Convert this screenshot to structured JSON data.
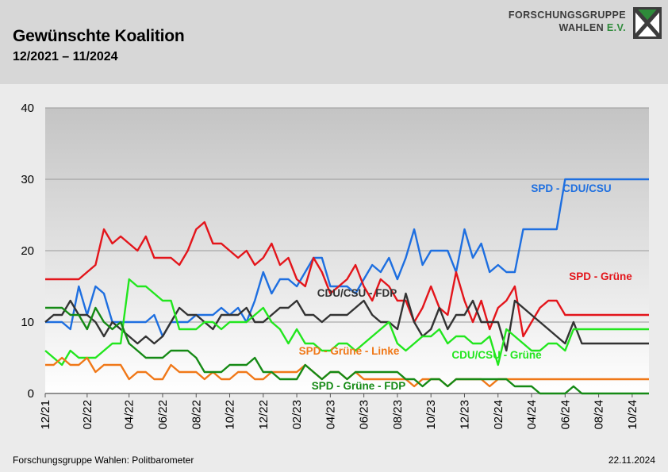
{
  "header": {
    "title": "Gewünschte Koalition",
    "subtitle": "12/2021 – 11/2024",
    "logo_line1": "FORSCHUNGSGRUPPE",
    "logo_line2": "WAHLEN",
    "logo_ev": "E.V."
  },
  "footer": {
    "source": "Forschungsgruppe Wahlen: Politbarometer",
    "date": "22.11.2024"
  },
  "colors": {
    "header_band": "#d7d7d7",
    "logo_green": "#2e8b3a"
  },
  "chart_data": {
    "type": "line",
    "title": "Gewünschte Koalition",
    "subtitle": "12/2021 – 11/2024",
    "xlabel": "",
    "ylabel": "",
    "ylim": [
      0,
      40
    ],
    "yticks": [
      0,
      10,
      20,
      30,
      40
    ],
    "grid": "horizontal",
    "legend": "inline labels",
    "xticks": [
      "12/21",
      "02/22",
      "04/22",
      "06/22",
      "08/22",
      "10/22",
      "12/22",
      "02/23",
      "04/23",
      "06/23",
      "08/23",
      "10/23",
      "12/23",
      "02/24",
      "04/24",
      "06/24",
      "08/24",
      "10/24"
    ],
    "x": [
      "2021-12",
      "2021-12",
      "2022-01",
      "2022-01",
      "2022-01",
      "2022-02",
      "2022-02",
      "2022-02",
      "2022-03",
      "2022-03",
      "2022-04",
      "2022-04",
      "2022-05",
      "2022-05",
      "2022-06",
      "2022-06",
      "2022-07",
      "2022-07",
      "2022-08",
      "2022-08",
      "2022-09",
      "2022-09",
      "2022-10",
      "2022-10",
      "2022-11",
      "2022-11",
      "2022-12",
      "2022-12",
      "2023-01",
      "2023-01",
      "2023-02",
      "2023-02",
      "2023-03",
      "2023-03",
      "2023-04",
      "2023-04",
      "2023-05",
      "2023-05",
      "2023-06",
      "2023-06",
      "2023-07",
      "2023-07",
      "2023-08",
      "2023-08",
      "2023-09",
      "2023-09",
      "2023-10",
      "2023-10",
      "2023-11",
      "2023-11",
      "2023-12",
      "2023-12",
      "2024-01",
      "2024-01",
      "2024-02",
      "2024-02",
      "2024-03",
      "2024-03",
      "2024-04",
      "2024-04",
      "2024-05",
      "2024-05",
      "2024-06",
      "2024-06",
      "2024-07",
      "2024-07",
      "2024-08",
      "2024-08",
      "2024-09",
      "2024-09",
      "2024-10",
      "2024-10",
      "2024-11"
    ],
    "series": [
      {
        "name": "SPD - CDU/CSU",
        "color": "#1e6fe0",
        "values": [
          10,
          10,
          10,
          9,
          15,
          11,
          15,
          14,
          10,
          10,
          10,
          10,
          10,
          11,
          8,
          10,
          10,
          10,
          11,
          11,
          11,
          12,
          11,
          12,
          10,
          13,
          17,
          14,
          16,
          16,
          15,
          17,
          19,
          19,
          15,
          15,
          15,
          14,
          16,
          18,
          17,
          19,
          16,
          19,
          23,
          18,
          20,
          20,
          20,
          17,
          23,
          19,
          21,
          17,
          18,
          17,
          17,
          23,
          23,
          23,
          23,
          23,
          30,
          30,
          30,
          30,
          30,
          30,
          30,
          30,
          30,
          30,
          30
        ]
      },
      {
        "name": "SPD - Grüne",
        "color": "#e3151b",
        "values": [
          16,
          16,
          16,
          16,
          16,
          17,
          18,
          23,
          21,
          22,
          21,
          20,
          22,
          19,
          19,
          19,
          18,
          20,
          23,
          24,
          21,
          21,
          20,
          19,
          20,
          18,
          19,
          21,
          18,
          19,
          16,
          15,
          19,
          17,
          14,
          15,
          16,
          18,
          15,
          13,
          16,
          15,
          13,
          13,
          10,
          12,
          15,
          12,
          11,
          17,
          13,
          10,
          13,
          9,
          12,
          13,
          15,
          8,
          10,
          12,
          13,
          13,
          11,
          11,
          11,
          11,
          11,
          11,
          11,
          11,
          11,
          11,
          11
        ]
      },
      {
        "name": "CDU/CSU - FDP",
        "color": "#333333",
        "values": [
          10,
          11,
          11,
          13,
          11,
          11,
          10,
          8,
          10,
          9,
          8,
          7,
          8,
          7,
          8,
          10,
          12,
          11,
          11,
          10,
          9,
          11,
          11,
          11,
          12,
          10,
          10,
          11,
          12,
          12,
          13,
          11,
          11,
          10,
          11,
          11,
          11,
          12,
          13,
          11,
          10,
          10,
          9,
          14,
          10,
          8,
          9,
          12,
          9,
          11,
          11,
          13,
          10,
          10,
          10,
          6,
          13,
          12,
          11,
          10,
          9,
          8,
          7,
          10,
          7,
          7,
          7,
          7,
          7,
          7,
          7,
          7,
          7
        ]
      },
      {
        "name": "CDU/CSU - Grüne",
        "color": "#22e61e",
        "values": [
          6,
          5,
          4,
          6,
          5,
          5,
          5,
          6,
          7,
          7,
          16,
          15,
          15,
          14,
          13,
          13,
          9,
          9,
          9,
          10,
          10,
          9,
          10,
          10,
          10,
          11,
          12,
          10,
          9,
          7,
          9,
          7,
          7,
          6,
          6,
          7,
          7,
          6,
          7,
          8,
          9,
          10,
          7,
          6,
          7,
          8,
          8,
          9,
          7,
          8,
          8,
          7,
          7,
          8,
          4,
          9,
          8,
          7,
          6,
          6,
          7,
          7,
          6,
          9,
          9,
          9,
          9,
          9,
          9,
          9,
          9,
          9,
          9
        ]
      },
      {
        "name": "SPD - Grüne - Linke",
        "color": "#f07818",
        "values": [
          4,
          4,
          5,
          4,
          4,
          5,
          3,
          4,
          4,
          4,
          2,
          3,
          3,
          2,
          2,
          4,
          3,
          3,
          3,
          2,
          3,
          2,
          2,
          3,
          3,
          2,
          2,
          3,
          3,
          3,
          3,
          4,
          3,
          2,
          3,
          3,
          2,
          3,
          2,
          2,
          2,
          2,
          2,
          2,
          1,
          2,
          2,
          2,
          1,
          2,
          2,
          2,
          2,
          1,
          2,
          2,
          2,
          2,
          2,
          2,
          2,
          2,
          2,
          2,
          2,
          2,
          2,
          2,
          2,
          2,
          2,
          2,
          2
        ]
      },
      {
        "name": "SPD - Grüne - FDP",
        "color": "#158a15",
        "values": [
          12,
          12,
          12,
          11,
          11,
          9,
          12,
          10,
          9,
          10,
          7,
          6,
          5,
          5,
          5,
          6,
          6,
          6,
          5,
          3,
          3,
          3,
          4,
          4,
          4,
          5,
          3,
          3,
          2,
          2,
          2,
          4,
          3,
          2,
          3,
          3,
          2,
          3,
          3,
          3,
          3,
          3,
          3,
          2,
          2,
          1,
          2,
          2,
          1,
          2,
          2,
          2,
          2,
          2,
          2,
          2,
          1,
          1,
          1,
          0,
          0,
          0,
          0,
          1,
          0,
          0,
          0,
          0,
          0,
          0,
          0,
          0,
          0
        ]
      }
    ]
  }
}
